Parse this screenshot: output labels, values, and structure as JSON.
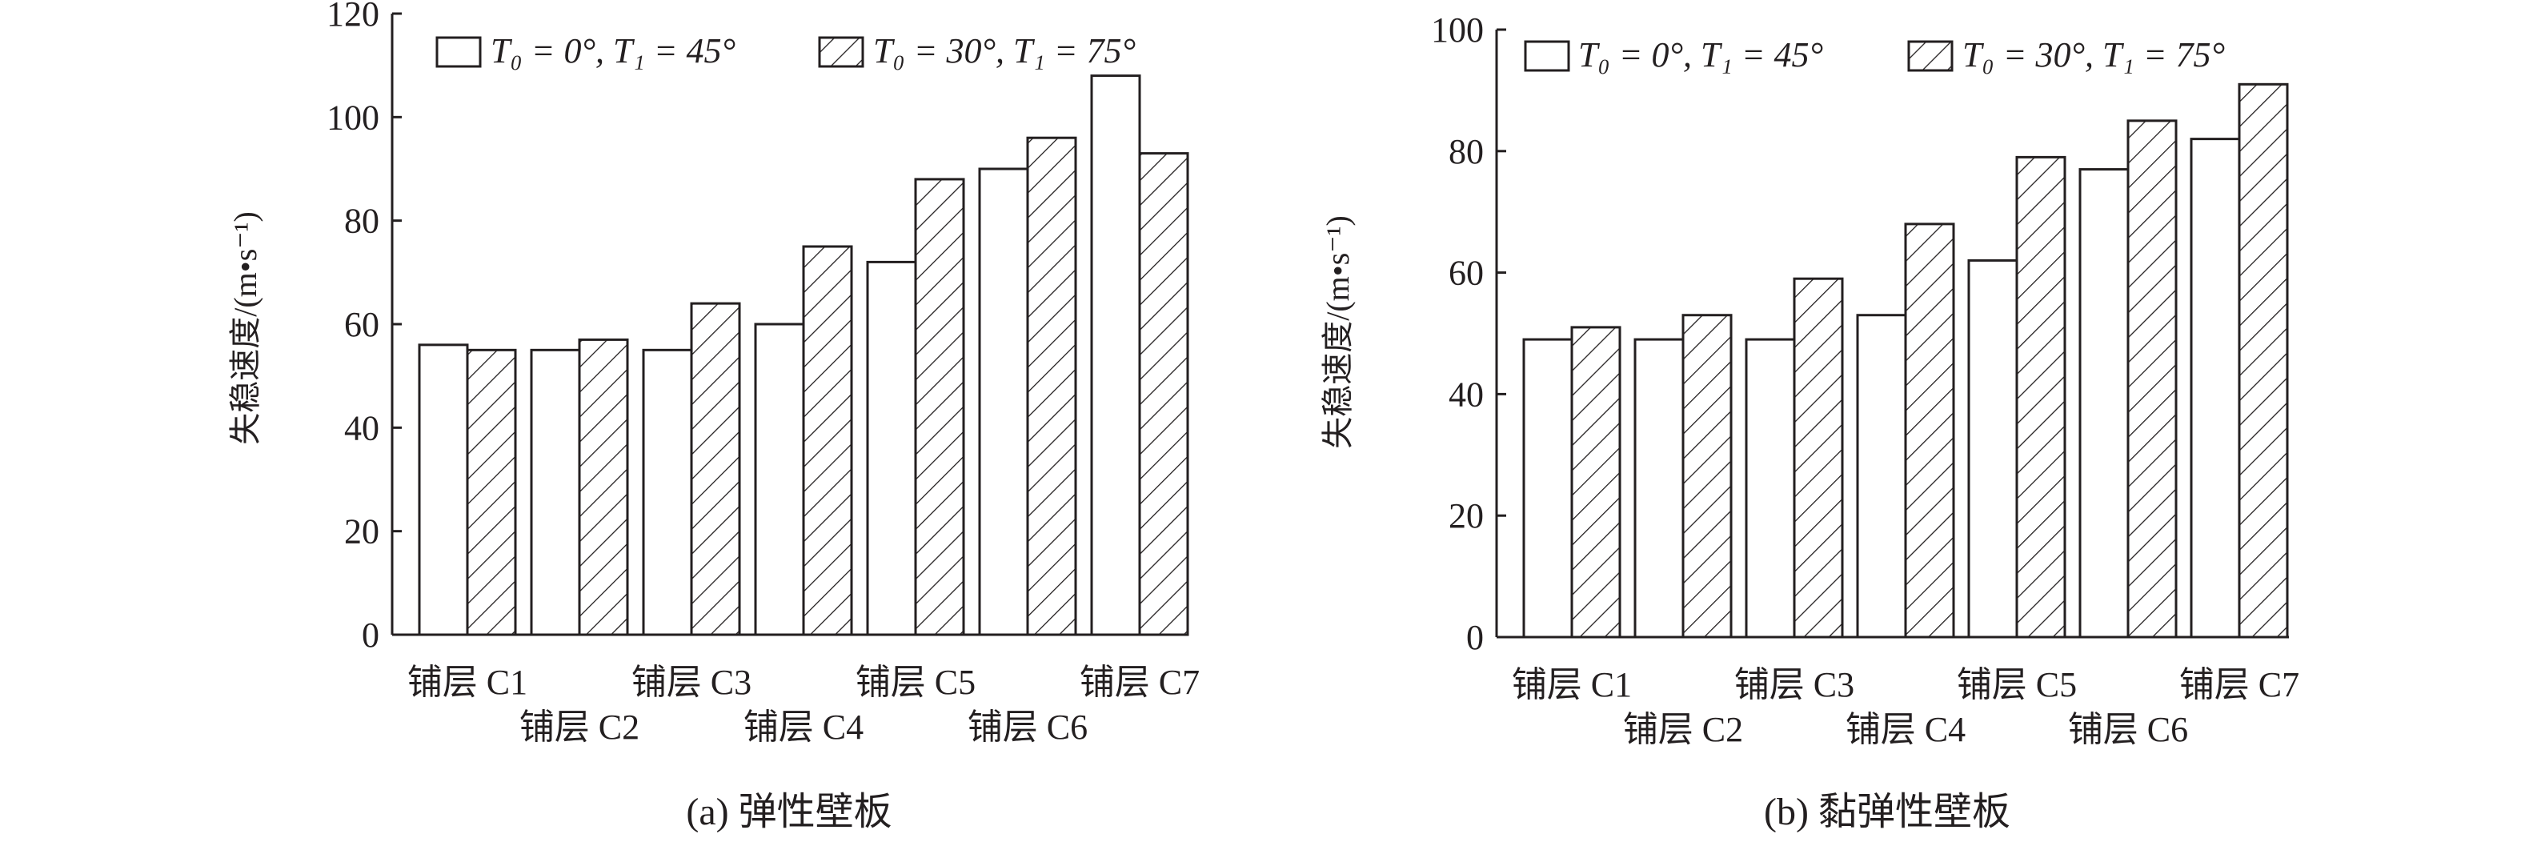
{
  "chart_data": [
    {
      "type": "bar",
      "caption": "(a) 弹性壁板",
      "ylabel": "失稳速度/(m•s⁻¹)",
      "ylim": [
        0,
        120
      ],
      "yticks": [
        "0",
        "20",
        "40",
        "60",
        "80",
        "100",
        "120"
      ],
      "grid": false,
      "legend_position": "top",
      "categories": [
        "铺层 C1",
        "铺层 C2",
        "铺层 C3",
        "铺层 C4",
        "铺层 C5",
        "铺层 C6",
        "铺层 C7"
      ],
      "series": [
        {
          "name": "T₀ = 0°, T₁ = 45°",
          "pattern": "plain",
          "values": [
            56,
            55,
            55,
            60,
            72,
            90,
            108
          ]
        },
        {
          "name": "T₀ = 30°, T₁ = 75°",
          "pattern": "hatched",
          "values": [
            55,
            57,
            64,
            75,
            88,
            96,
            93
          ]
        }
      ]
    },
    {
      "type": "bar",
      "caption": "(b) 黏弹性壁板",
      "ylabel": "失稳速度/(m•s⁻¹)",
      "ylim": [
        0,
        100
      ],
      "yticks": [
        "0",
        "20",
        "40",
        "60",
        "80",
        "100"
      ],
      "grid": false,
      "legend_position": "top",
      "categories": [
        "铺层 C1",
        "铺层 C2",
        "铺层 C3",
        "铺层 C4",
        "铺层 C5",
        "铺层 C6",
        "铺层 C7"
      ],
      "series": [
        {
          "name": "T₀ = 0°, T₁ = 45°",
          "pattern": "plain",
          "values": [
            49,
            49,
            49,
            53,
            62,
            77,
            82
          ]
        },
        {
          "name": "T₀ = 30°, T₁ = 75°",
          "pattern": "hatched",
          "values": [
            51,
            53,
            59,
            68,
            79,
            85,
            91
          ]
        }
      ]
    }
  ],
  "colors": {
    "ink": "#231f20",
    "bar_fill": "#ffffff"
  }
}
